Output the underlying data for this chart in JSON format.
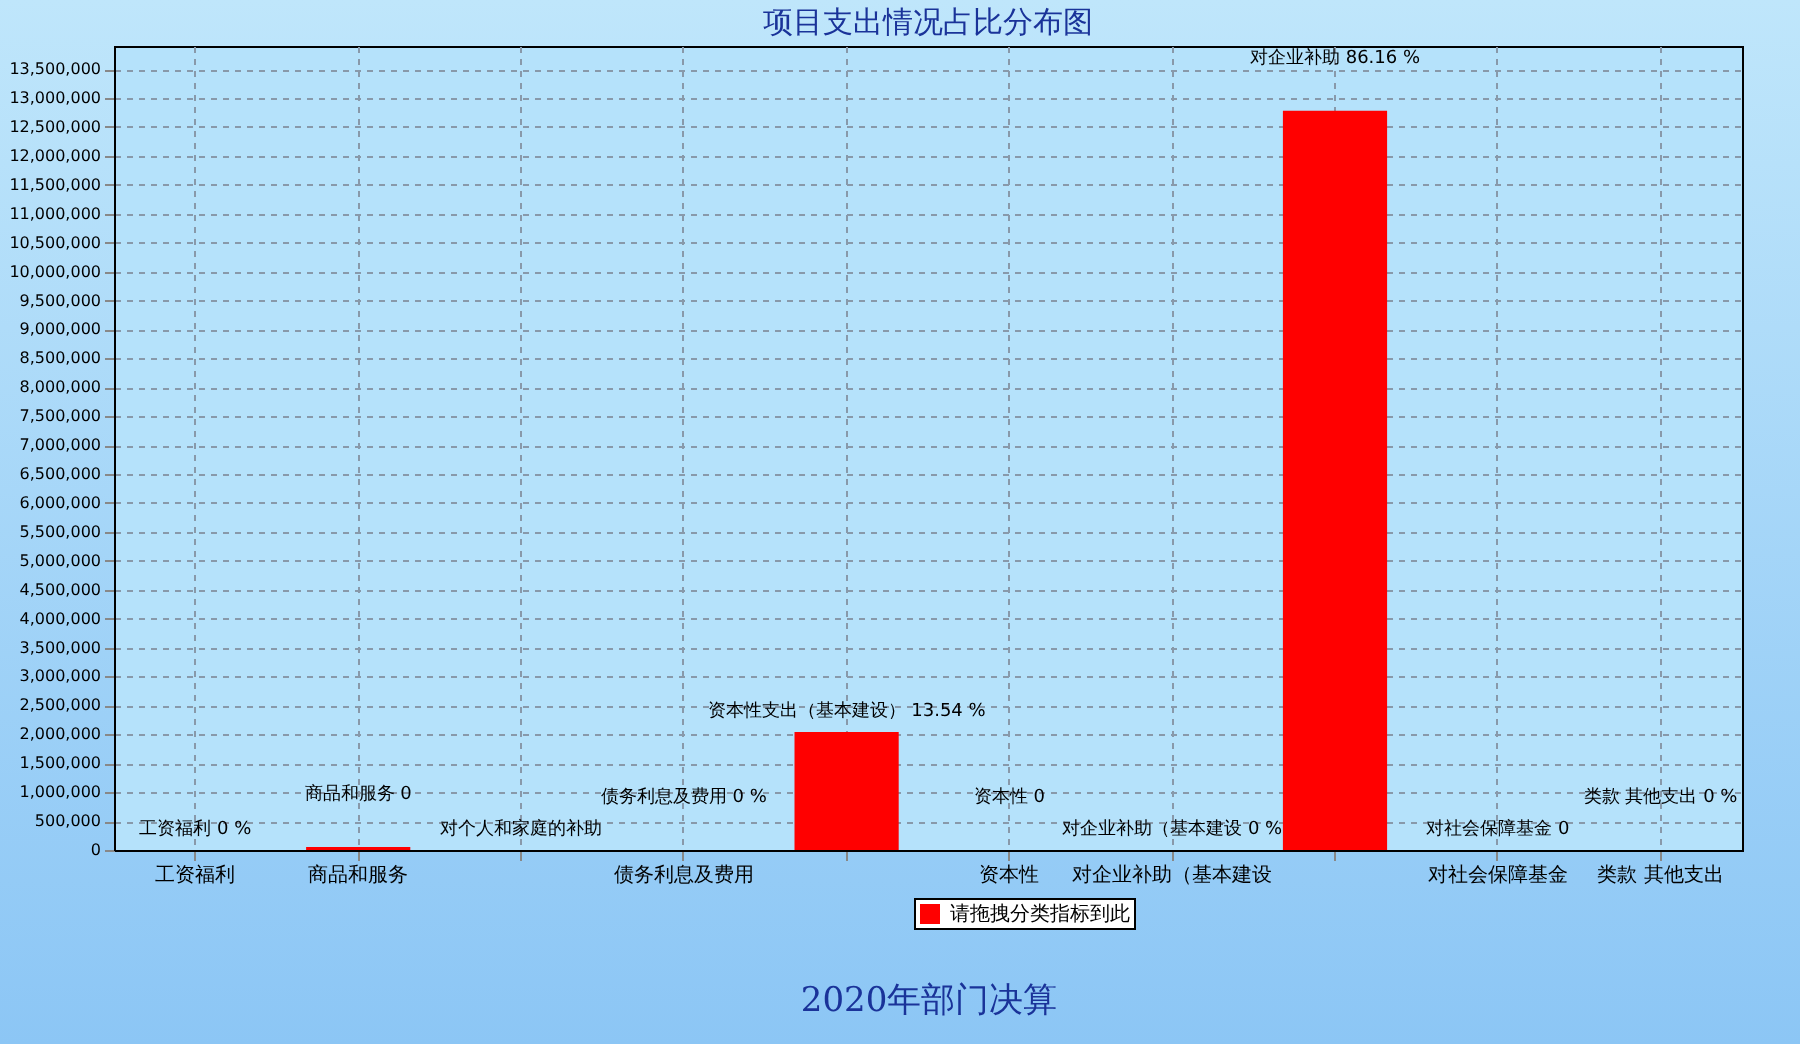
{
  "chart_data": {
    "type": "bar",
    "title": "项目支出情况占比分布图",
    "xlabel": "2020年部门决算",
    "categories": [
      "工资福利",
      "商品和服务",
      null,
      "债务利息及费用",
      null,
      "资本性",
      "对企业补助（基本建设",
      null,
      "对社会保障基金",
      "类款 其他支出"
    ],
    "series": [
      {
        "name": "请拖拽分类指标到此",
        "color": "#ff0000",
        "values": [
          0,
          50000,
          0,
          0,
          2040000,
          0,
          0,
          12780000,
          0,
          0
        ]
      }
    ],
    "value_labels": [
      "工资福利 0 %",
      "商品和服务 0",
      "对个人和家庭的补助",
      "债务利息及费用 0 %",
      "资本性支出（基本建设） 13.54 %",
      "资本性 0",
      "对企业补助（基本建设 0 %",
      "对企业补助 86.16 %",
      "对社会保障基金 0",
      "类款 其他支出 0 %"
    ],
    "ylim": [
      0,
      13900000
    ],
    "yticks": [
      0,
      {
        "value": 500000,
        "label": "500,000"
      },
      {
        "value": 1000000,
        "label": "1,000,000"
      },
      {
        "value": 1500000,
        "label": "1,500,000"
      },
      {
        "value": 2000000,
        "label": "2,000,000"
      },
      {
        "value": 2500000,
        "label": "2,500,000"
      },
      {
        "value": 3000000,
        "label": "3,000,000"
      },
      {
        "value": 3500000,
        "label": "3,500,000"
      },
      {
        "value": 4000000,
        "label": "4,000,000"
      },
      {
        "value": 4500000,
        "label": "4,500,000"
      },
      {
        "value": 5000000,
        "label": "5,000,000"
      },
      {
        "value": 5500000,
        "label": "5,500,000"
      },
      {
        "value": 6000000,
        "label": "6,000,000"
      },
      {
        "value": 6500000,
        "label": "6,500,000"
      },
      {
        "value": 7000000,
        "label": "7,000,000"
      },
      {
        "value": 7500000,
        "label": "7,500,000"
      },
      {
        "value": 8000000,
        "label": "8,000,000"
      },
      {
        "value": 8500000,
        "label": "8,500,000"
      },
      {
        "value": 9000000,
        "label": "9,000,000"
      },
      {
        "value": 9500000,
        "label": "9,500,000"
      },
      {
        "value": 10000000,
        "label": "10,000,000"
      },
      {
        "value": 10500000,
        "label": "10,500,000"
      },
      {
        "value": 11000000,
        "label": "11,000,000"
      },
      {
        "value": 11500000,
        "label": "11,500,000"
      },
      {
        "value": 12000000,
        "label": "12,000,000"
      },
      {
        "value": 12500000,
        "label": "12,500,000"
      },
      {
        "value": 13000000,
        "label": "13,000,000"
      },
      {
        "value": 13500000,
        "label": "13,500,000"
      }
    ],
    "grid": true,
    "legend": "bottom"
  }
}
